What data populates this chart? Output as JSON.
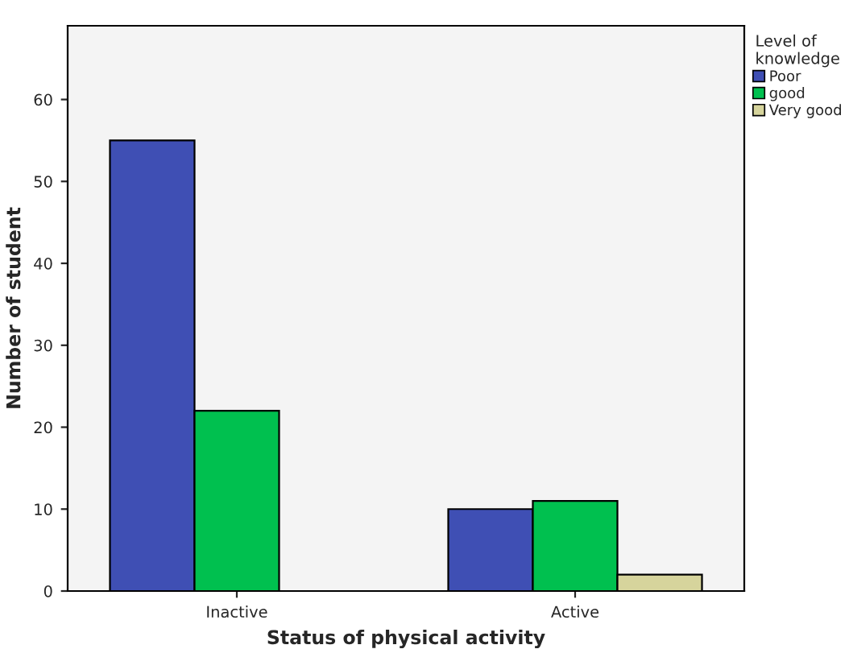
{
  "chart_data": {
    "type": "bar",
    "xlabel": "Status of physical activity",
    "ylabel": "Number of student",
    "legend_title": "Level of\nknowledge",
    "categories": [
      "Inactive",
      "Active"
    ],
    "series": [
      {
        "name": "Poor",
        "color": "#3f4fb4",
        "values": [
          55,
          10
        ]
      },
      {
        "name": "good",
        "color": "#00c04f",
        "values": [
          22,
          11
        ]
      },
      {
        "name": "Very good",
        "color": "#d6d49c",
        "values": [
          null,
          2
        ]
      }
    ],
    "ylim": [
      0,
      69
    ],
    "yticks": [
      0,
      10,
      20,
      30,
      40,
      50,
      60
    ],
    "grid": false,
    "legend": "top right"
  }
}
